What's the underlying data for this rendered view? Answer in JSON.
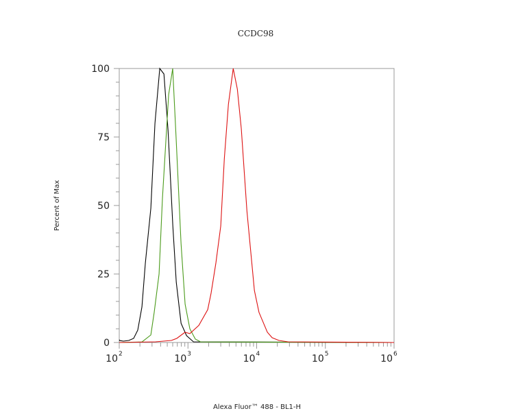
{
  "chart_data": {
    "type": "line",
    "title": "CCDC98",
    "xlabel": "Alexa Fluor™ 488 - BL1-H",
    "ylabel": "Percent of Max",
    "xscale": "log",
    "xlim": [
      100,
      1000000
    ],
    "ylim": [
      0,
      100
    ],
    "x_ticks": [
      {
        "value": 100,
        "base": "10",
        "exp": "2"
      },
      {
        "value": 1000,
        "base": "10",
        "exp": "3"
      },
      {
        "value": 10000,
        "base": "10",
        "exp": "4"
      },
      {
        "value": 100000,
        "base": "10",
        "exp": "5"
      },
      {
        "value": 1000000,
        "base": "10",
        "exp": "6"
      }
    ],
    "y_ticks": [
      "0",
      "25",
      "50",
      "75",
      "100"
    ],
    "grid": false,
    "legend": "none",
    "series": [
      {
        "color": "#000000",
        "x": [
          100,
          102,
          115,
          138,
          162,
          186,
          214,
          240,
          288,
          331,
          389,
          447,
          513,
          603,
          676,
          794,
          955,
          1202,
          1000000
        ],
        "y": [
          1,
          0.7,
          0.5,
          0.75,
          1.5,
          4.5,
          13,
          29,
          49,
          80,
          100,
          98,
          77.5,
          42.5,
          22,
          7,
          2.5,
          0.25,
          0
        ]
      },
      {
        "color": "#4a9a1a",
        "x": [
          100,
          214,
          288,
          323,
          380,
          425,
          476,
          524,
          600,
          672,
          794,
          910,
          1066,
          1280,
          1540,
          1000000
        ],
        "y": [
          0,
          0.2,
          2.75,
          11,
          25,
          52.5,
          73,
          90.5,
          100,
          75,
          36,
          14,
          5,
          1.25,
          0.2,
          0
        ]
      },
      {
        "color": "#dd1111",
        "x": [
          100,
          338,
          574,
          688,
          907,
          1066,
          1440,
          1940,
          2170,
          2550,
          3000,
          3380,
          3880,
          4560,
          5230,
          5980,
          7210,
          9260,
          10800,
          14300,
          16800,
          21100,
          28600,
          1000000
        ],
        "y": [
          0,
          0.25,
          0.75,
          1.5,
          3.75,
          3.25,
          6.25,
          12,
          18,
          29,
          42.5,
          67,
          87,
          100,
          92.5,
          78,
          48,
          19,
          11,
          3.75,
          1.75,
          0.75,
          0.25,
          0
        ]
      }
    ]
  }
}
